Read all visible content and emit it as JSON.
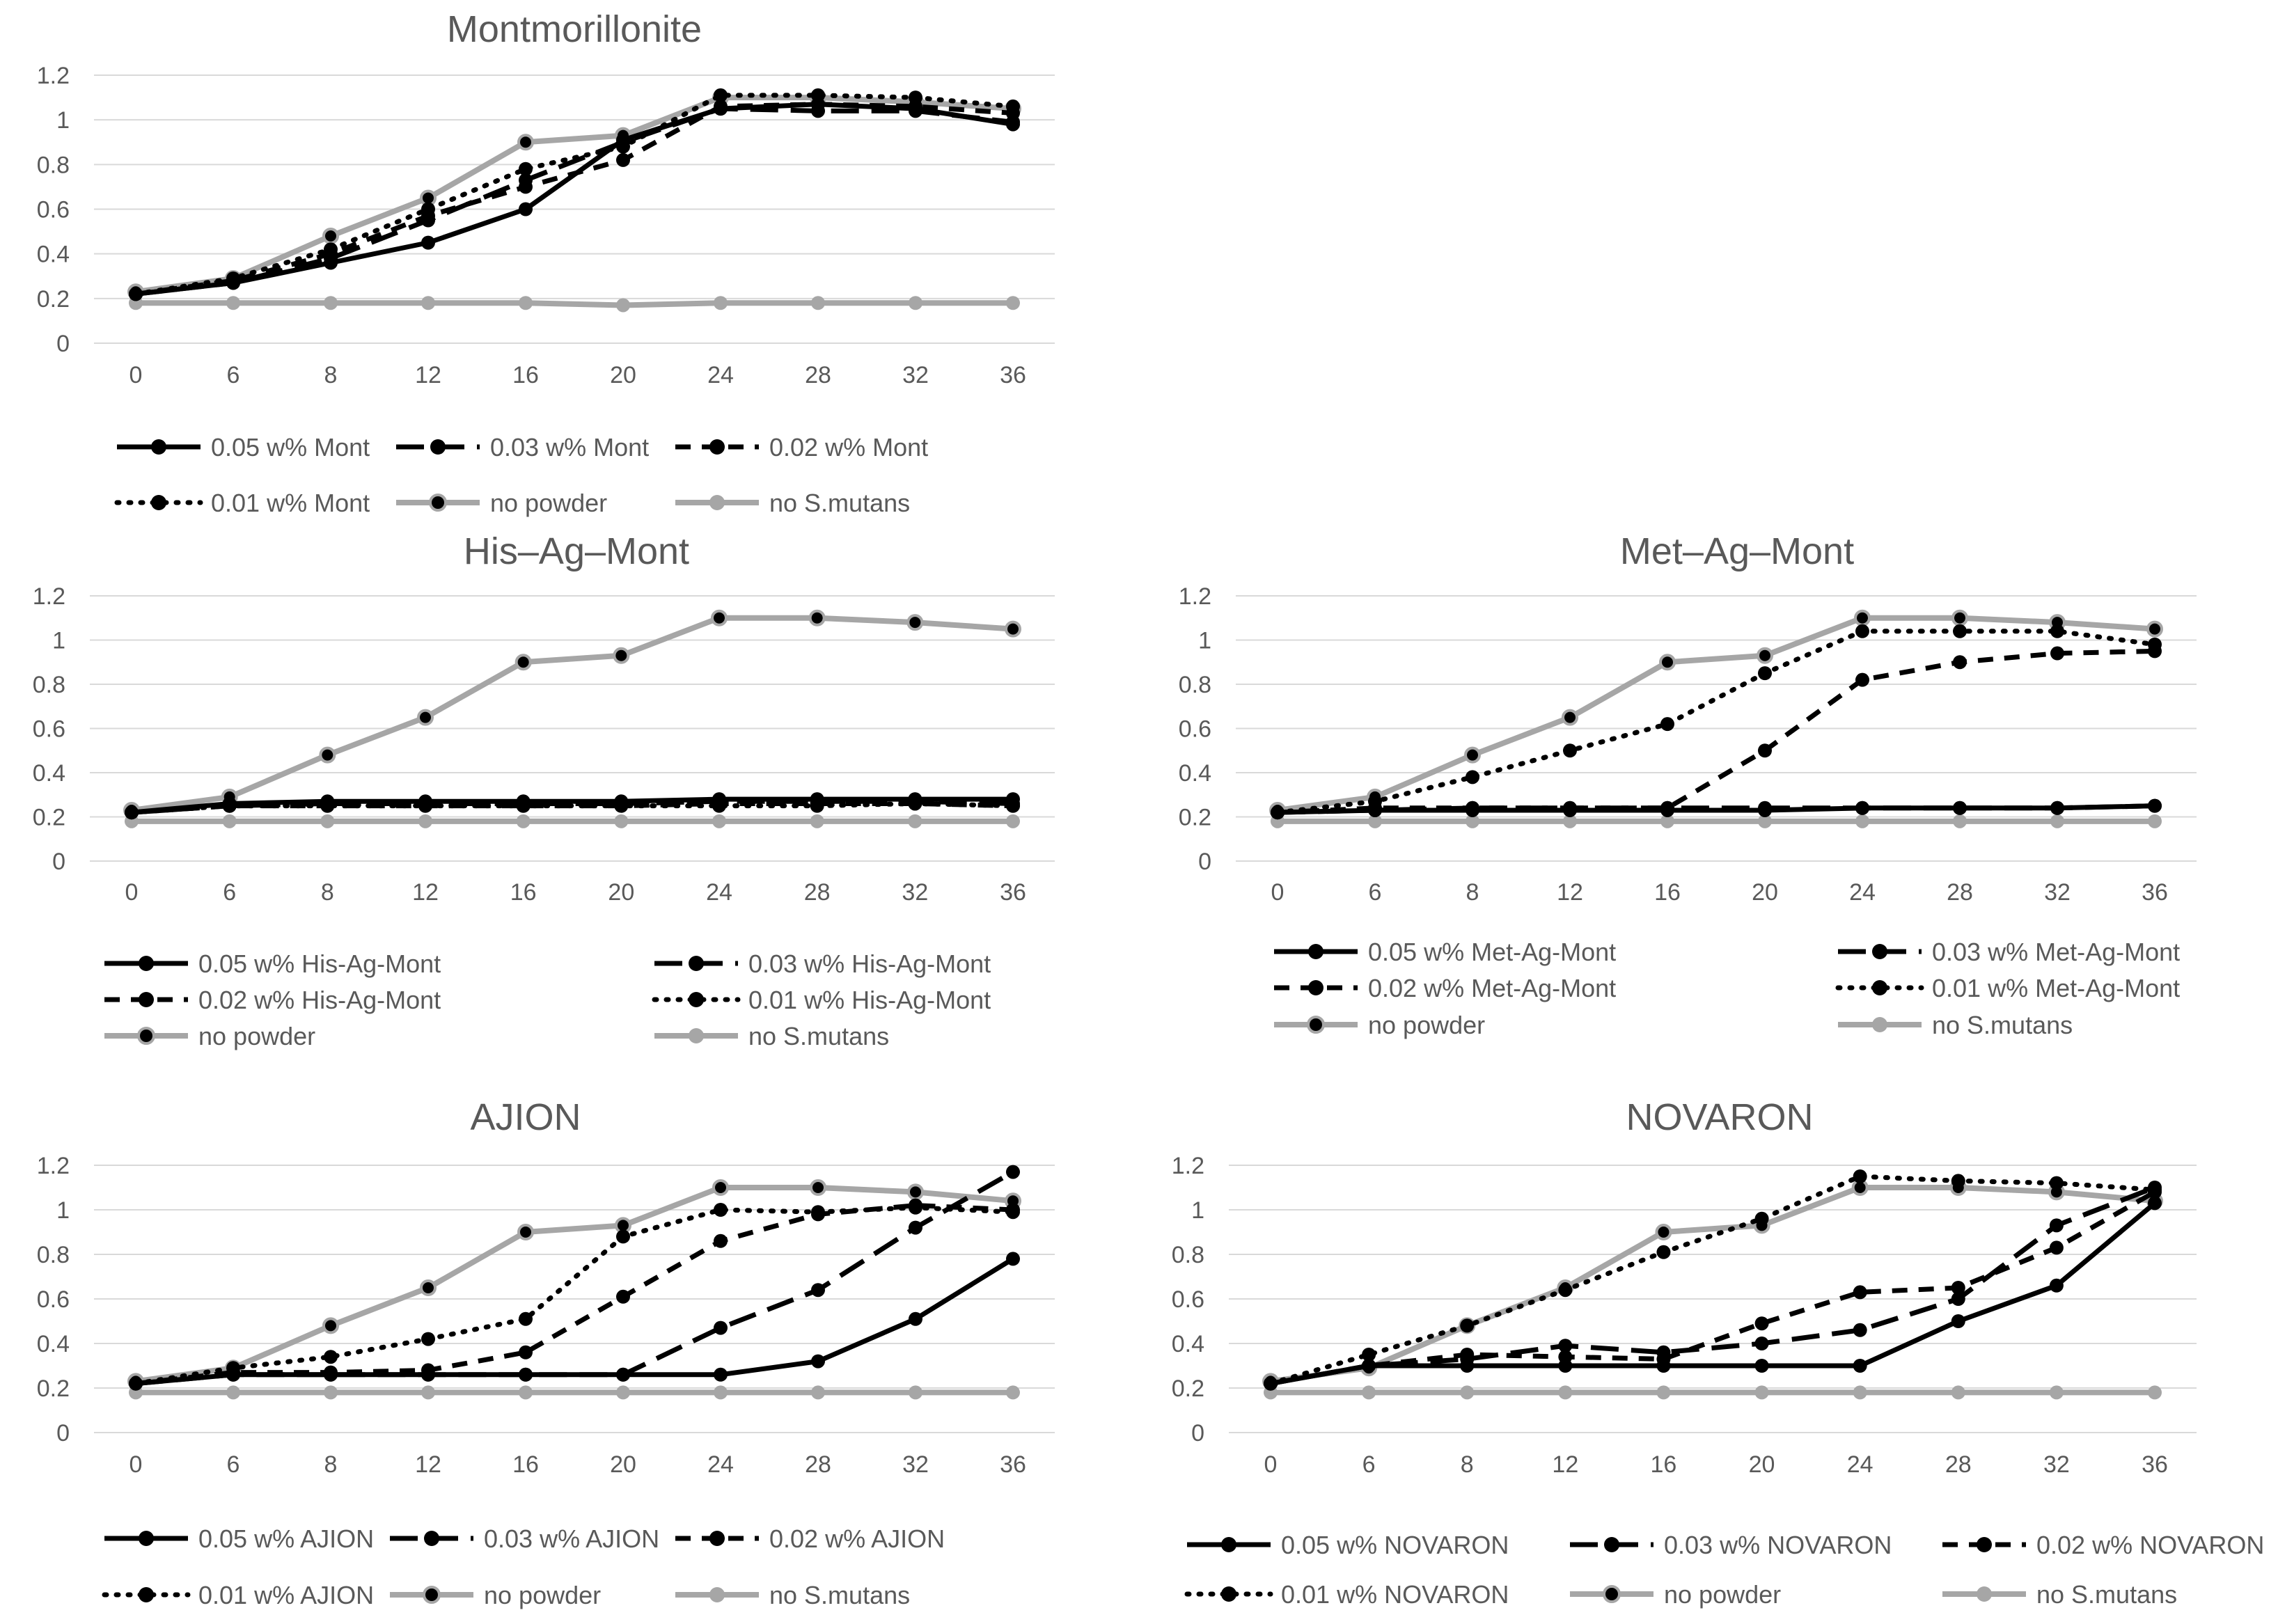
{
  "colors": {
    "black": "#000000",
    "gray": "#a6a6a6",
    "grid": "#d9d9d9",
    "text": "#595959"
  },
  "chart_data": [
    {
      "type": "line",
      "title": "Montmorillonite",
      "categories": [
        "0",
        "6",
        "8",
        "12",
        "16",
        "20",
        "24",
        "28",
        "32",
        "36"
      ],
      "ylim": [
        0,
        1.2
      ],
      "yticks": [
        "0",
        "0.2",
        "0.4",
        "0.6",
        "0.8",
        "1",
        "1.2"
      ],
      "grid": true,
      "legend_position": "bottom",
      "series": [
        {
          "name": "0.05 w% Mont",
          "style": "solid-black",
          "values": [
            0.22,
            0.27,
            0.36,
            0.45,
            0.6,
            0.91,
            1.05,
            1.07,
            1.05,
            0.98
          ]
        },
        {
          "name": "0.03 w% Mont",
          "style": "longdash-black",
          "values": [
            0.22,
            0.27,
            0.38,
            0.55,
            0.73,
            0.9,
            1.05,
            1.04,
            1.04,
            0.99
          ]
        },
        {
          "name": "0.02 w% Mont",
          "style": "dash-black",
          "values": [
            0.22,
            0.28,
            0.4,
            0.57,
            0.7,
            0.82,
            1.06,
            1.07,
            1.06,
            1.03
          ]
        },
        {
          "name": "0.01 w% Mont",
          "style": "dot-black",
          "values": [
            0.22,
            0.29,
            0.42,
            0.6,
            0.78,
            0.88,
            1.11,
            1.11,
            1.1,
            1.06
          ]
        },
        {
          "name": "no powder",
          "style": "solid-gray-dot",
          "values": [
            0.23,
            0.29,
            0.48,
            0.65,
            0.9,
            0.93,
            1.1,
            1.1,
            1.08,
            1.05
          ]
        },
        {
          "name": "no S.mutans",
          "style": "solid-gray",
          "values": [
            0.18,
            0.18,
            0.18,
            0.18,
            0.18,
            0.17,
            0.18,
            0.18,
            0.18,
            0.18
          ]
        }
      ]
    },
    {
      "type": "line",
      "title": "His–Ag–Mont",
      "categories": [
        "0",
        "6",
        "8",
        "12",
        "16",
        "20",
        "24",
        "28",
        "32",
        "36"
      ],
      "ylim": [
        0,
        1.2
      ],
      "yticks": [
        "0",
        "0.2",
        "0.4",
        "0.6",
        "0.8",
        "1",
        "1.2"
      ],
      "grid": true,
      "legend_position": "bottom",
      "series": [
        {
          "name": "0.05 w% His-Ag-Mont",
          "style": "solid-black",
          "values": [
            0.22,
            0.26,
            0.27,
            0.27,
            0.27,
            0.27,
            0.28,
            0.28,
            0.28,
            0.28
          ]
        },
        {
          "name": "0.03 w% His-Ag-Mont",
          "style": "longdash-black",
          "values": [
            0.22,
            0.25,
            0.26,
            0.26,
            0.26,
            0.26,
            0.27,
            0.27,
            0.27,
            0.26
          ]
        },
        {
          "name": "0.02 w% His-Ag-Mont",
          "style": "dash-black",
          "values": [
            0.22,
            0.25,
            0.25,
            0.25,
            0.25,
            0.25,
            0.26,
            0.26,
            0.26,
            0.25
          ]
        },
        {
          "name": "0.01 w% His-Ag-Mont",
          "style": "dot-black",
          "values": [
            0.22,
            0.25,
            0.25,
            0.25,
            0.25,
            0.25,
            0.25,
            0.25,
            0.26,
            0.25
          ]
        },
        {
          "name": "no powder",
          "style": "solid-gray-dot",
          "values": [
            0.23,
            0.29,
            0.48,
            0.65,
            0.9,
            0.93,
            1.1,
            1.1,
            1.08,
            1.05
          ]
        },
        {
          "name": "no S.mutans",
          "style": "solid-gray",
          "values": [
            0.18,
            0.18,
            0.18,
            0.18,
            0.18,
            0.18,
            0.18,
            0.18,
            0.18,
            0.18
          ]
        }
      ]
    },
    {
      "type": "line",
      "title": "Met–Ag–Mont",
      "categories": [
        "0",
        "6",
        "8",
        "12",
        "16",
        "20",
        "24",
        "28",
        "32",
        "36"
      ],
      "ylim": [
        0,
        1.2
      ],
      "yticks": [
        "0",
        "0.2",
        "0.4",
        "0.6",
        "0.8",
        "1",
        "1.2"
      ],
      "grid": true,
      "legend_position": "bottom",
      "series": [
        {
          "name": "0.05 w% Met-Ag-Mont",
          "style": "solid-black",
          "values": [
            0.22,
            0.23,
            0.23,
            0.23,
            0.23,
            0.23,
            0.24,
            0.24,
            0.24,
            0.25
          ]
        },
        {
          "name": "0.03 w% Met-Ag-Mont",
          "style": "longdash-black",
          "values": [
            0.22,
            0.23,
            0.24,
            0.24,
            0.24,
            0.24,
            0.24,
            0.24,
            0.24,
            0.25
          ]
        },
        {
          "name": "0.02 w% Met-Ag-Mont",
          "style": "dash-black",
          "values": [
            0.22,
            0.24,
            0.24,
            0.24,
            0.24,
            0.5,
            0.82,
            0.9,
            0.94,
            0.95
          ]
        },
        {
          "name": "0.01 w% Met-Ag-Mont",
          "style": "dot-black",
          "values": [
            0.22,
            0.27,
            0.38,
            0.5,
            0.62,
            0.85,
            1.04,
            1.04,
            1.04,
            0.98
          ]
        },
        {
          "name": "no powder",
          "style": "solid-gray-dot",
          "values": [
            0.23,
            0.29,
            0.48,
            0.65,
            0.9,
            0.93,
            1.1,
            1.1,
            1.08,
            1.05
          ]
        },
        {
          "name": "no S.mutans",
          "style": "solid-gray",
          "values": [
            0.18,
            0.18,
            0.18,
            0.18,
            0.18,
            0.18,
            0.18,
            0.18,
            0.18,
            0.18
          ]
        }
      ]
    },
    {
      "type": "line",
      "title": "AJION",
      "categories": [
        "0",
        "6",
        "8",
        "12",
        "16",
        "20",
        "24",
        "28",
        "32",
        "36"
      ],
      "ylim": [
        0,
        1.2
      ],
      "yticks": [
        "0",
        "0.2",
        "0.4",
        "0.6",
        "0.8",
        "1",
        "1.2"
      ],
      "grid": true,
      "legend_position": "bottom",
      "series": [
        {
          "name": "0.05 w% AJION",
          "style": "solid-black",
          "values": [
            0.22,
            0.26,
            0.26,
            0.26,
            0.26,
            0.26,
            0.26,
            0.32,
            0.51,
            0.78
          ]
        },
        {
          "name": "0.03 w% AJION",
          "style": "longdash-black",
          "values": [
            0.22,
            0.26,
            0.26,
            0.26,
            0.26,
            0.26,
            0.47,
            0.64,
            0.92,
            1.17
          ]
        },
        {
          "name": "0.02 w% AJION",
          "style": "dash-black",
          "values": [
            0.22,
            0.27,
            0.27,
            0.28,
            0.36,
            0.61,
            0.86,
            0.98,
            1.02,
            1.0
          ]
        },
        {
          "name": "0.01 w% AJION",
          "style": "dot-black",
          "values": [
            0.22,
            0.29,
            0.34,
            0.42,
            0.51,
            0.88,
            1.0,
            0.99,
            1.01,
            0.99
          ]
        },
        {
          "name": "no powder",
          "style": "solid-gray-dot",
          "values": [
            0.23,
            0.29,
            0.48,
            0.65,
            0.9,
            0.93,
            1.1,
            1.1,
            1.08,
            1.04
          ]
        },
        {
          "name": "no S.mutans",
          "style": "solid-gray",
          "values": [
            0.18,
            0.18,
            0.18,
            0.18,
            0.18,
            0.18,
            0.18,
            0.18,
            0.18,
            0.18
          ]
        }
      ]
    },
    {
      "type": "line",
      "title": "NOVARON",
      "categories": [
        "0",
        "6",
        "8",
        "12",
        "16",
        "20",
        "24",
        "28",
        "32",
        "36"
      ],
      "ylim": [
        0,
        1.2
      ],
      "yticks": [
        "0",
        "0.2",
        "0.4",
        "0.6",
        "0.8",
        "1",
        "1.2"
      ],
      "grid": true,
      "legend_position": "bottom",
      "series": [
        {
          "name": "0.05 w% NOVARON",
          "style": "solid-black",
          "values": [
            0.22,
            0.3,
            0.3,
            0.3,
            0.3,
            0.3,
            0.3,
            0.5,
            0.66,
            1.03
          ]
        },
        {
          "name": "0.03 w% NOVARON",
          "style": "longdash-black",
          "values": [
            0.22,
            0.3,
            0.33,
            0.39,
            0.36,
            0.4,
            0.46,
            0.6,
            0.93,
            1.1
          ]
        },
        {
          "name": "0.02 w% NOVARON",
          "style": "dash-black",
          "values": [
            0.22,
            0.3,
            0.35,
            0.34,
            0.33,
            0.49,
            0.63,
            0.65,
            0.83,
            1.08
          ]
        },
        {
          "name": "0.01 w% NOVARON",
          "style": "dot-black",
          "values": [
            0.22,
            0.35,
            0.48,
            0.64,
            0.81,
            0.96,
            1.15,
            1.13,
            1.12,
            1.09
          ]
        },
        {
          "name": "no powder",
          "style": "solid-gray-dot",
          "values": [
            0.23,
            0.29,
            0.48,
            0.65,
            0.9,
            0.93,
            1.1,
            1.1,
            1.08,
            1.04
          ]
        },
        {
          "name": "no S.mutans",
          "style": "solid-gray",
          "values": [
            0.18,
            0.18,
            0.18,
            0.18,
            0.18,
            0.18,
            0.18,
            0.18,
            0.18,
            0.18
          ]
        }
      ]
    }
  ]
}
